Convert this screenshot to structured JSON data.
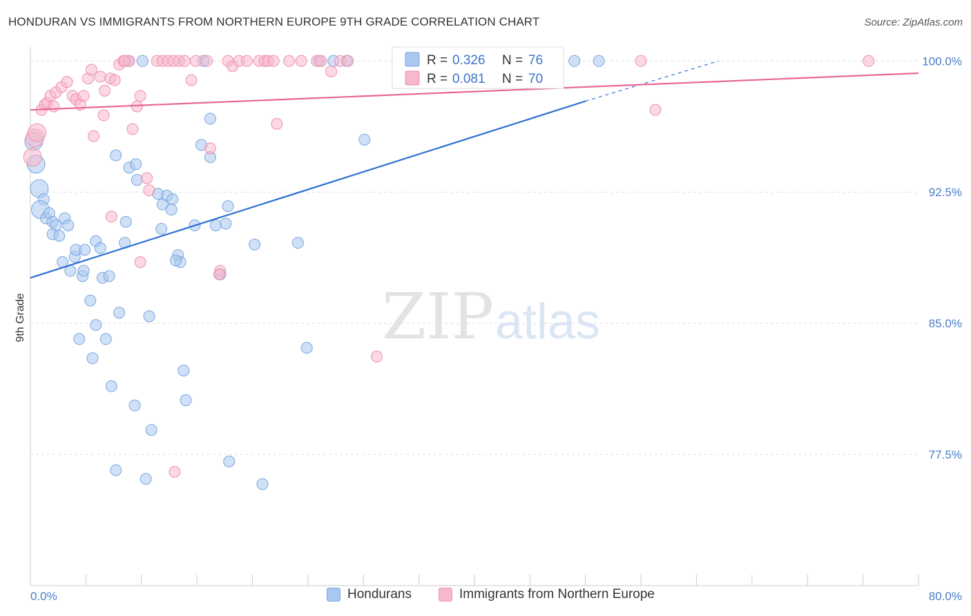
{
  "title": "HONDURAN VS IMMIGRANTS FROM NORTHERN EUROPE 9TH GRADE CORRELATION CHART",
  "source": "Source: ZipAtlas.com",
  "watermark": {
    "zip": "ZIP",
    "atlas": "atlas"
  },
  "colors": {
    "blue_fill": "#a9c8f0",
    "blue_stroke": "#7aa5de",
    "blue_line": "#2a6fd0",
    "pink_fill": "#f7b8cc",
    "pink_stroke": "#ee90ae",
    "pink_line": "#e8668f",
    "axis_text": "#4a7cc8",
    "grid": "#dddddd"
  },
  "chart_data": {
    "type": "scatter",
    "title": "HONDURAN VS IMMIGRANTS FROM NORTHERN EUROPE 9TH GRADE CORRELATION CHART",
    "xlabel": "",
    "ylabel": "9th Grade",
    "xlim": [
      0,
      80
    ],
    "ylim": [
      70,
      100.8
    ],
    "x_tick_labels": [
      "0.0%",
      "80.0%"
    ],
    "y_ticks": [
      {
        "value": 100.0,
        "label": "100.0%"
      },
      {
        "value": 92.5,
        "label": "92.5%"
      },
      {
        "value": 85.0,
        "label": "85.0%"
      },
      {
        "value": 77.5,
        "label": "77.5%"
      }
    ],
    "legend": [
      {
        "series": "Hondurans",
        "r_label": "R =",
        "r_value": "0.326",
        "n_label": "N =",
        "n_value": "76"
      },
      {
        "series": "Immigrants from Northern Europe",
        "r_label": "R =",
        "r_value": "0.081",
        "n_label": "N =",
        "n_value": "70"
      }
    ],
    "series": [
      {
        "name": "Hondurans",
        "color": "blue",
        "trend": {
          "x": [
            0,
            50
          ],
          "y": [
            87.6,
            97.7
          ],
          "dashed_to": [
            62,
            100.0
          ]
        },
        "points": [
          [
            0.3,
            95.4
          ],
          [
            0.5,
            94.1
          ],
          [
            0.8,
            92.7
          ],
          [
            1.2,
            92.1
          ],
          [
            0.9,
            91.5
          ],
          [
            1.4,
            91.0
          ],
          [
            1.7,
            91.3
          ],
          [
            2.0,
            90.8
          ],
          [
            2.3,
            90.6
          ],
          [
            2.0,
            90.1
          ],
          [
            2.6,
            90.0
          ],
          [
            3.1,
            91.0
          ],
          [
            3.4,
            90.6
          ],
          [
            2.9,
            88.5
          ],
          [
            3.6,
            88.0
          ],
          [
            4.0,
            88.8
          ],
          [
            4.1,
            89.2
          ],
          [
            4.9,
            89.2
          ],
          [
            4.7,
            87.7
          ],
          [
            4.8,
            88.0
          ],
          [
            5.9,
            89.7
          ],
          [
            6.3,
            89.3
          ],
          [
            6.5,
            87.6
          ],
          [
            7.1,
            87.7
          ],
          [
            7.7,
            94.6
          ],
          [
            8.5,
            89.6
          ],
          [
            8.6,
            90.8
          ],
          [
            8.9,
            93.9
          ],
          [
            9.5,
            94.1
          ],
          [
            9.6,
            93.2
          ],
          [
            11.5,
            92.4
          ],
          [
            11.9,
            91.8
          ],
          [
            12.3,
            92.3
          ],
          [
            12.8,
            92.1
          ],
          [
            11.8,
            90.4
          ],
          [
            12.7,
            91.5
          ],
          [
            13.3,
            88.9
          ],
          [
            13.5,
            88.5
          ],
          [
            13.1,
            88.6
          ],
          [
            14.8,
            90.6
          ],
          [
            15.4,
            95.2
          ],
          [
            16.2,
            94.5
          ],
          [
            16.2,
            96.7
          ],
          [
            16.7,
            90.6
          ],
          [
            17.1,
            87.8
          ],
          [
            17.6,
            90.7
          ],
          [
            17.8,
            91.7
          ],
          [
            20.2,
            89.5
          ],
          [
            24.1,
            89.6
          ],
          [
            24.9,
            83.6
          ],
          [
            30.1,
            95.5
          ],
          [
            5.4,
            86.3
          ],
          [
            5.9,
            84.9
          ],
          [
            4.4,
            84.1
          ],
          [
            6.8,
            84.1
          ],
          [
            8.0,
            85.6
          ],
          [
            10.7,
            85.4
          ],
          [
            5.6,
            83.0
          ],
          [
            7.3,
            81.4
          ],
          [
            9.4,
            80.3
          ],
          [
            13.8,
            82.3
          ],
          [
            14.0,
            80.6
          ],
          [
            10.9,
            78.9
          ],
          [
            7.7,
            76.6
          ],
          [
            10.4,
            76.1
          ],
          [
            17.9,
            77.1
          ],
          [
            20.9,
            75.8
          ],
          [
            8.8,
            100.0
          ],
          [
            10.1,
            100.0
          ],
          [
            15.6,
            100.0
          ],
          [
            26.0,
            100.0
          ],
          [
            27.3,
            100.0
          ],
          [
            28.5,
            100.0
          ],
          [
            41.2,
            100.0
          ],
          [
            49.0,
            100.0
          ],
          [
            51.2,
            100.0
          ]
        ]
      },
      {
        "name": "Immigrants from Northern Europe",
        "color": "pink",
        "trend": {
          "x": [
            0,
            80
          ],
          "y": [
            97.2,
            99.3
          ]
        },
        "points": [
          [
            0.2,
            94.5
          ],
          [
            0.4,
            95.6
          ],
          [
            0.6,
            95.9
          ],
          [
            1.0,
            97.2
          ],
          [
            1.3,
            97.5
          ],
          [
            1.5,
            97.6
          ],
          [
            1.8,
            98.0
          ],
          [
            2.1,
            97.4
          ],
          [
            2.3,
            98.2
          ],
          [
            2.8,
            98.5
          ],
          [
            3.3,
            98.8
          ],
          [
            3.8,
            98.0
          ],
          [
            4.1,
            97.8
          ],
          [
            4.5,
            97.5
          ],
          [
            4.8,
            98.0
          ],
          [
            5.2,
            99.0
          ],
          [
            5.5,
            99.5
          ],
          [
            5.7,
            95.7
          ],
          [
            6.3,
            99.1
          ],
          [
            6.6,
            96.9
          ],
          [
            6.7,
            98.3
          ],
          [
            7.2,
            99.0
          ],
          [
            7.6,
            98.9
          ],
          [
            8.0,
            99.8
          ],
          [
            8.4,
            100.0
          ],
          [
            8.9,
            100.0
          ],
          [
            9.2,
            96.1
          ],
          [
            9.6,
            97.4
          ],
          [
            9.9,
            98.0
          ],
          [
            10.5,
            93.3
          ],
          [
            10.7,
            92.6
          ],
          [
            11.4,
            100.0
          ],
          [
            11.9,
            100.0
          ],
          [
            12.4,
            100.0
          ],
          [
            12.9,
            100.0
          ],
          [
            13.4,
            100.0
          ],
          [
            13.9,
            100.0
          ],
          [
            14.5,
            98.9
          ],
          [
            14.9,
            100.0
          ],
          [
            15.9,
            100.0
          ],
          [
            16.2,
            95.0
          ],
          [
            17.1,
            88.0
          ],
          [
            17.8,
            100.0
          ],
          [
            18.2,
            99.7
          ],
          [
            18.8,
            100.0
          ],
          [
            19.5,
            100.0
          ],
          [
            20.6,
            100.0
          ],
          [
            21.1,
            100.0
          ],
          [
            21.4,
            100.0
          ],
          [
            21.9,
            100.0
          ],
          [
            22.2,
            96.4
          ],
          [
            23.3,
            100.0
          ],
          [
            24.4,
            100.0
          ],
          [
            25.8,
            100.0
          ],
          [
            26.2,
            100.0
          ],
          [
            27.1,
            99.4
          ],
          [
            27.9,
            100.0
          ],
          [
            28.6,
            100.0
          ],
          [
            33.3,
            100.0
          ],
          [
            37.5,
            100.0
          ],
          [
            41.2,
            100.0
          ],
          [
            55.0,
            100.0
          ],
          [
            56.3,
            97.2
          ],
          [
            75.5,
            100.0
          ],
          [
            7.3,
            91.1
          ],
          [
            9.9,
            88.5
          ],
          [
            17.0,
            87.8
          ],
          [
            31.2,
            83.1
          ],
          [
            13.0,
            76.5
          ],
          [
            8.5,
            100.0
          ]
        ]
      }
    ]
  },
  "bottom_legend": [
    {
      "label": "Hondurans"
    },
    {
      "label": "Immigrants from Northern Europe"
    }
  ]
}
